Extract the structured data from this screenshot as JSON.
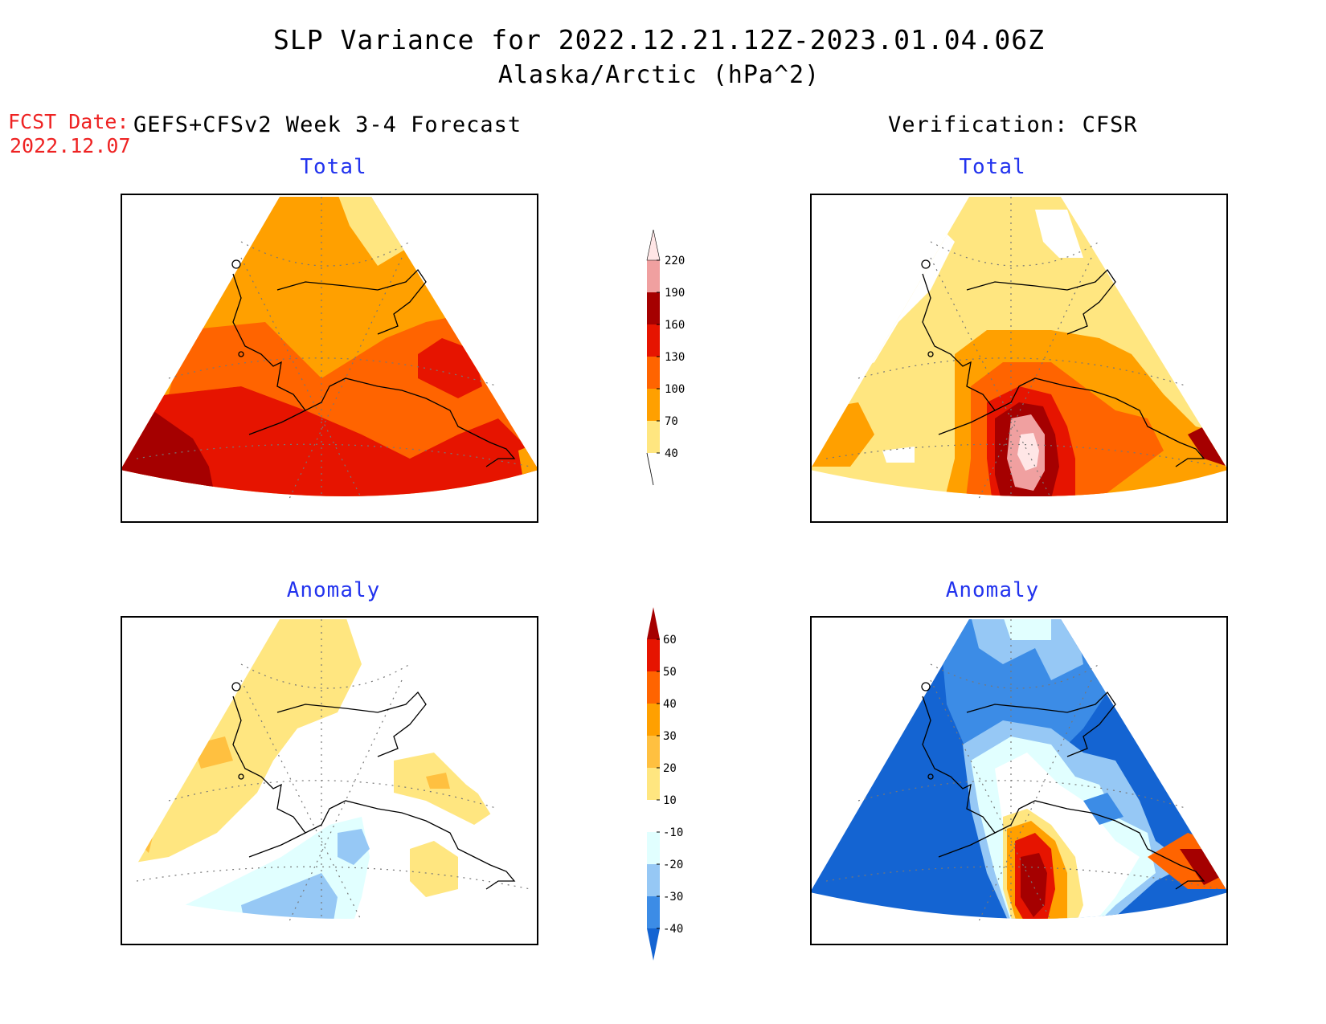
{
  "header": {
    "title_line1": "SLP Variance for 2022.12.21.12Z-2023.01.04.06Z",
    "title_line2": "Alaska/Arctic (hPa^2)",
    "fcst_label": "FCST Date:",
    "fcst_date": "2022.12.07",
    "left_heading": "GEFS+CFSv2 Week 3-4 Forecast",
    "right_heading": "Verification: CFSR"
  },
  "panels": [
    {
      "title": "Total"
    },
    {
      "title": "Total"
    },
    {
      "title": "Anomaly"
    },
    {
      "title": "Anomaly"
    }
  ],
  "colorbar_total": {
    "labels": [
      "40",
      "70",
      "100",
      "130",
      "160",
      "190",
      "220"
    ],
    "colors": [
      "#ffe680",
      "#ffa000",
      "#ff6400",
      "#e61400",
      "#a50000",
      "#f0a0a0",
      "#ffe6e6"
    ]
  },
  "colorbar_anomaly": {
    "labels": [
      "-40",
      "-30",
      "-20",
      "-10",
      "10",
      "20",
      "30",
      "40",
      "50",
      "60"
    ],
    "colors": [
      "#1464d2",
      "#3c8ce6",
      "#96c8f5",
      "#e1ffff",
      "#ffffff",
      "#ffe680",
      "#ffc040",
      "#ffa000",
      "#ff6400",
      "#e61400",
      "#a50000"
    ]
  },
  "palette": {
    "total": {
      "c40": "#ffe680",
      "c70": "#ffa000",
      "c100": "#ff6400",
      "c130": "#e61400",
      "c160": "#a50000",
      "c190": "#f0a0a0",
      "c220": "#ffe6e6"
    },
    "anom": {
      "n40": "#1464d2",
      "n30": "#3c8ce6",
      "n20": "#96c8f5",
      "n10": "#e1ffff",
      "zero": "#ffffff",
      "p10": "#ffe680",
      "p20": "#ffc040",
      "p30": "#ffa000",
      "p40": "#ff6400",
      "p50": "#e61400",
      "p60": "#a50000"
    }
  }
}
